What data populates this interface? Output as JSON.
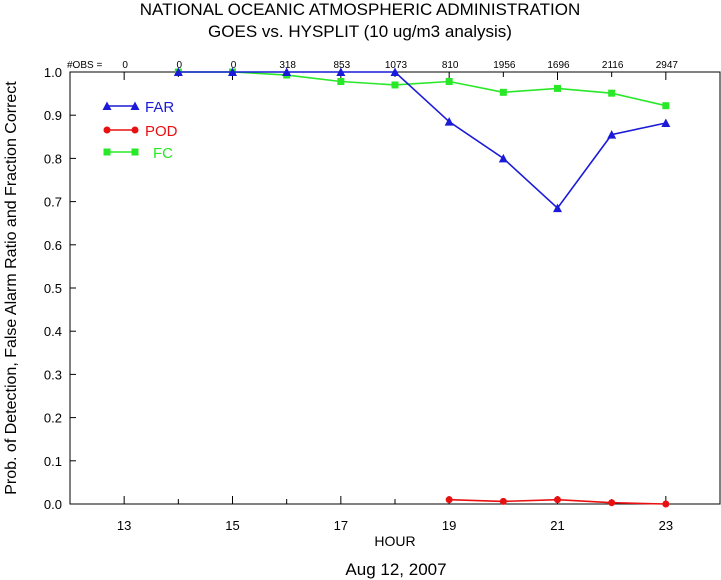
{
  "chart_data": {
    "type": "line",
    "title": "NATIONAL OCEANIC ATMOSPHERIC ADMINISTRATION",
    "subtitle": "GOES vs. HYSPLIT  (10 ug/m3 analysis)",
    "xlabel": "HOUR",
    "ylabel": "Prob. of Detection, False Alarm Ratio and Fraction Correct",
    "date_label": "Aug 12, 2007",
    "xlim": [
      12,
      24
    ],
    "ylim": [
      0.0,
      1.0
    ],
    "x_ticks": [
      13,
      15,
      17,
      19,
      21,
      23
    ],
    "x_minor_ticks": [
      14,
      16,
      18,
      20,
      22
    ],
    "y_ticks": [
      "0.0",
      "0.1",
      "0.2",
      "0.3",
      "0.4",
      "0.5",
      "0.6",
      "0.7",
      "0.8",
      "0.9",
      "1.0"
    ],
    "obs_label": "#OBS =",
    "obs": [
      {
        "x": 13,
        "count": "0"
      },
      {
        "x": 14,
        "count": "0"
      },
      {
        "x": 15,
        "count": "0"
      },
      {
        "x": 16,
        "count": "318"
      },
      {
        "x": 17,
        "count": "853"
      },
      {
        "x": 18,
        "count": "1073"
      },
      {
        "x": 19,
        "count": "810"
      },
      {
        "x": 20,
        "count": "1956"
      },
      {
        "x": 21,
        "count": "1696"
      },
      {
        "x": 22,
        "count": "2116"
      },
      {
        "x": 23,
        "count": "2947"
      }
    ],
    "legend_position": "top-left",
    "series": [
      {
        "name": "FAR",
        "color": "#1a1ad8",
        "marker": "triangle",
        "x": [
          14,
          15,
          16,
          17,
          18,
          19,
          20,
          21,
          22,
          23
        ],
        "values": [
          1.0,
          1.0,
          1.0,
          1.0,
          1.0,
          0.885,
          0.8,
          0.685,
          0.855,
          0.882
        ]
      },
      {
        "name": "POD",
        "color": "#e81010",
        "marker": "circle",
        "x": [
          19,
          20,
          21,
          22,
          23
        ],
        "values": [
          0.01,
          0.006,
          0.01,
          0.003,
          0.0
        ]
      },
      {
        "name": "FC",
        "color": "#28e828",
        "marker": "square",
        "x": [
          14,
          15,
          16,
          17,
          18,
          19,
          20,
          21,
          22,
          23
        ],
        "values": [
          1.0,
          1.0,
          0.993,
          0.978,
          0.97,
          0.978,
          0.953,
          0.962,
          0.951,
          0.922
        ]
      }
    ]
  }
}
